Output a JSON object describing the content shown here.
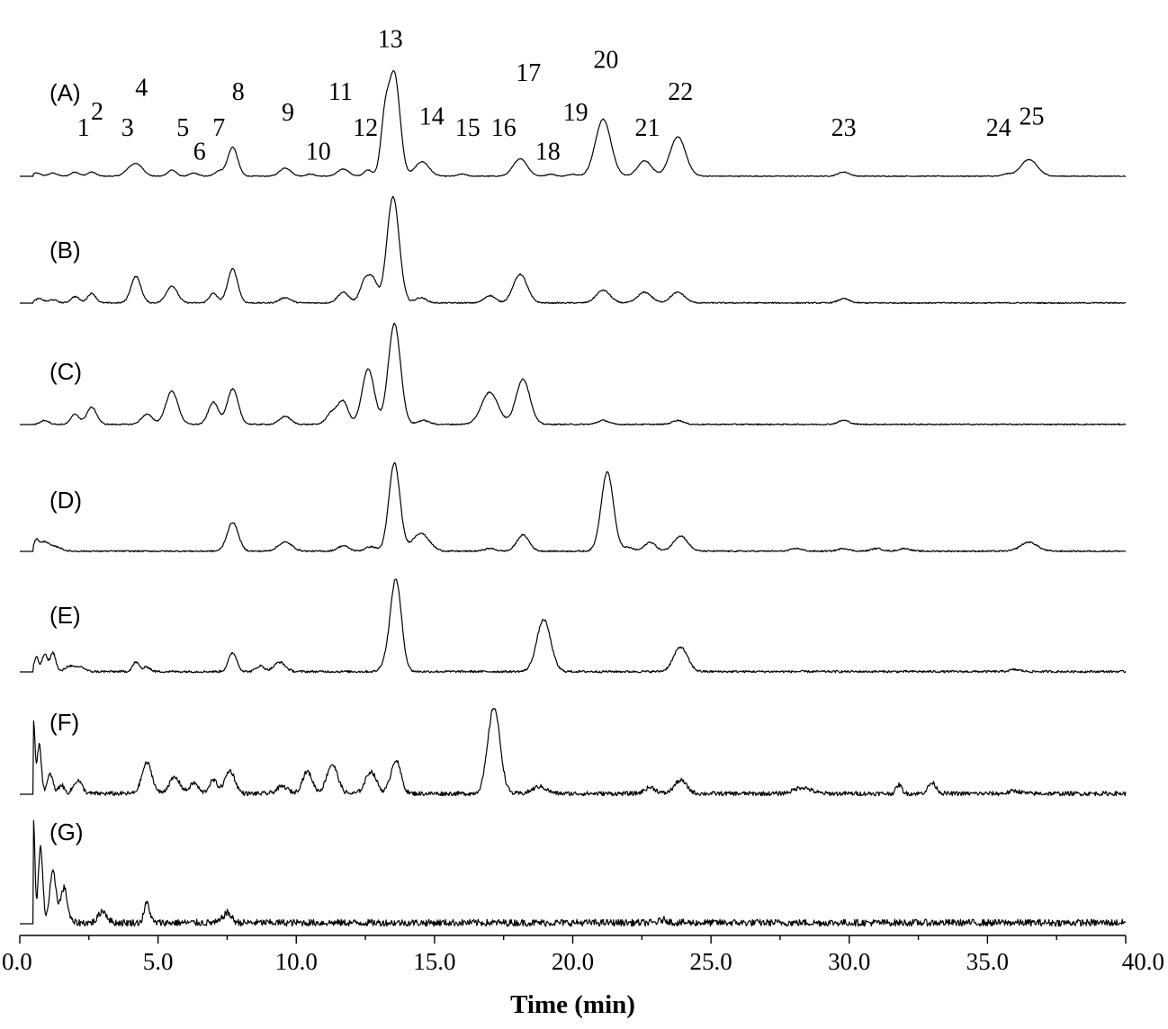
{
  "chart_data": {
    "type": "line",
    "xlabel": "Time (min)",
    "ylabel": "",
    "xlim": [
      0,
      40
    ],
    "x_ticks": [
      "0.0",
      "5.0",
      "10.0",
      "15.0",
      "20.0",
      "25.0",
      "30.0",
      "35.0",
      "40.0"
    ],
    "grid": false,
    "series": [
      {
        "name": "(A)",
        "baseline_noise": 0.004,
        "peaks": [
          [
            0.6,
            0.03,
            0.15
          ],
          [
            1.2,
            0.03,
            0.15
          ],
          [
            2.0,
            0.04,
            0.15
          ],
          [
            2.6,
            0.04,
            0.15
          ],
          [
            4.0,
            0.07,
            0.2
          ],
          [
            4.3,
            0.09,
            0.2
          ],
          [
            5.5,
            0.06,
            0.15
          ],
          [
            6.3,
            0.03,
            0.15
          ],
          [
            7.2,
            0.05,
            0.15
          ],
          [
            7.7,
            0.28,
            0.18
          ],
          [
            9.6,
            0.08,
            0.2
          ],
          [
            10.5,
            0.02,
            0.15
          ],
          [
            11.7,
            0.07,
            0.2
          ],
          [
            12.6,
            0.06,
            0.15
          ],
          [
            13.2,
            0.5,
            0.15
          ],
          [
            13.55,
            0.98,
            0.2
          ],
          [
            14.55,
            0.14,
            0.25
          ],
          [
            16.0,
            0.02,
            0.15
          ],
          [
            18.1,
            0.17,
            0.25
          ],
          [
            19.2,
            0.02,
            0.15
          ],
          [
            20.0,
            0.02,
            0.15
          ],
          [
            21.1,
            0.55,
            0.28
          ],
          [
            22.6,
            0.15,
            0.25
          ],
          [
            23.8,
            0.38,
            0.28
          ],
          [
            29.8,
            0.04,
            0.2
          ],
          [
            35.7,
            0.02,
            0.15
          ],
          [
            36.5,
            0.16,
            0.3
          ]
        ],
        "peak_labels": [
          {
            "text": "1",
            "x": 2.3,
            "y": 0.39
          },
          {
            "text": "2",
            "x": 2.8,
            "y": 0.55
          },
          {
            "text": "3",
            "x": 3.9,
            "y": 0.39
          },
          {
            "text": "4",
            "x": 4.4,
            "y": 0.78
          },
          {
            "text": "5",
            "x": 5.9,
            "y": 0.39
          },
          {
            "text": "6",
            "x": 6.5,
            "y": 0.16
          },
          {
            "text": "7",
            "x": 7.2,
            "y": 0.39
          },
          {
            "text": "8",
            "x": 7.9,
            "y": 0.74
          },
          {
            "text": "9",
            "x": 9.7,
            "y": 0.54
          },
          {
            "text": "10",
            "x": 10.8,
            "y": 0.16
          },
          {
            "text": "11",
            "x": 11.6,
            "y": 0.74
          },
          {
            "text": "12",
            "x": 12.5,
            "y": 0.39
          },
          {
            "text": "13",
            "x": 13.4,
            "y": 1.25
          },
          {
            "text": "14",
            "x": 14.9,
            "y": 0.5
          },
          {
            "text": "15",
            "x": 16.2,
            "y": 0.39
          },
          {
            "text": "16",
            "x": 17.5,
            "y": 0.39
          },
          {
            "text": "17",
            "x": 18.4,
            "y": 0.92
          },
          {
            "text": "18",
            "x": 19.1,
            "y": 0.16
          },
          {
            "text": "19",
            "x": 20.1,
            "y": 0.54
          },
          {
            "text": "20",
            "x": 21.2,
            "y": 1.05
          },
          {
            "text": "21",
            "x": 22.7,
            "y": 0.39
          },
          {
            "text": "22",
            "x": 23.9,
            "y": 0.74
          },
          {
            "text": "23",
            "x": 29.8,
            "y": 0.39
          },
          {
            "text": "24",
            "x": 35.4,
            "y": 0.39
          },
          {
            "text": "25",
            "x": 36.6,
            "y": 0.5
          }
        ]
      },
      {
        "name": "(B)",
        "baseline_noise": 0.006,
        "peaks": [
          [
            0.7,
            0.04,
            0.15
          ],
          [
            1.2,
            0.03,
            0.15
          ],
          [
            2.0,
            0.06,
            0.15
          ],
          [
            2.6,
            0.09,
            0.15
          ],
          [
            4.2,
            0.25,
            0.18
          ],
          [
            5.5,
            0.16,
            0.2
          ],
          [
            7.0,
            0.09,
            0.15
          ],
          [
            7.7,
            0.32,
            0.18
          ],
          [
            9.6,
            0.05,
            0.2
          ],
          [
            11.7,
            0.1,
            0.2
          ],
          [
            12.5,
            0.22,
            0.18
          ],
          [
            12.8,
            0.18,
            0.15
          ],
          [
            13.5,
            1.0,
            0.22
          ],
          [
            14.5,
            0.05,
            0.2
          ],
          [
            17.0,
            0.07,
            0.2
          ],
          [
            18.1,
            0.27,
            0.25
          ],
          [
            21.1,
            0.12,
            0.25
          ],
          [
            22.6,
            0.1,
            0.25
          ],
          [
            23.8,
            0.1,
            0.25
          ],
          [
            29.8,
            0.04,
            0.2
          ]
        ],
        "peak_labels": []
      },
      {
        "name": "(C)",
        "baseline_noise": 0.006,
        "peaks": [
          [
            0.9,
            0.04,
            0.15
          ],
          [
            2.0,
            0.1,
            0.15
          ],
          [
            2.6,
            0.17,
            0.18
          ],
          [
            4.6,
            0.1,
            0.2
          ],
          [
            5.5,
            0.33,
            0.22
          ],
          [
            7.0,
            0.22,
            0.18
          ],
          [
            7.7,
            0.35,
            0.2
          ],
          [
            9.6,
            0.08,
            0.2
          ],
          [
            11.3,
            0.12,
            0.2
          ],
          [
            11.7,
            0.22,
            0.18
          ],
          [
            12.6,
            0.55,
            0.22
          ],
          [
            13.55,
            1.0,
            0.22
          ],
          [
            14.6,
            0.04,
            0.2
          ],
          [
            17.0,
            0.32,
            0.3
          ],
          [
            18.2,
            0.45,
            0.25
          ],
          [
            21.1,
            0.04,
            0.2
          ],
          [
            23.8,
            0.04,
            0.2
          ],
          [
            29.8,
            0.04,
            0.2
          ]
        ],
        "peak_labels": []
      },
      {
        "name": "(D)",
        "baseline_noise": 0.008,
        "peaks": [
          [
            0.6,
            0.12,
            0.1
          ],
          [
            0.9,
            0.1,
            0.15
          ],
          [
            1.3,
            0.05,
            0.2
          ],
          [
            7.7,
            0.32,
            0.2
          ],
          [
            9.6,
            0.1,
            0.25
          ],
          [
            11.7,
            0.06,
            0.2
          ],
          [
            12.7,
            0.05,
            0.2
          ],
          [
            13.55,
            0.98,
            0.2
          ],
          [
            14.5,
            0.2,
            0.3
          ],
          [
            17.0,
            0.03,
            0.2
          ],
          [
            18.2,
            0.18,
            0.22
          ],
          [
            21.25,
            0.88,
            0.22
          ],
          [
            22.0,
            0.04,
            0.2
          ],
          [
            22.8,
            0.1,
            0.2
          ],
          [
            23.9,
            0.17,
            0.25
          ],
          [
            28.1,
            0.03,
            0.2
          ],
          [
            29.8,
            0.03,
            0.2
          ],
          [
            31.0,
            0.03,
            0.2
          ],
          [
            32.0,
            0.03,
            0.2
          ],
          [
            36.5,
            0.1,
            0.3
          ]
        ],
        "peak_labels": []
      },
      {
        "name": "(E)",
        "baseline_noise": 0.012,
        "peaks": [
          [
            0.6,
            0.15,
            0.08
          ],
          [
            0.9,
            0.18,
            0.1
          ],
          [
            1.2,
            0.2,
            0.1
          ],
          [
            1.8,
            0.06,
            0.15
          ],
          [
            2.2,
            0.05,
            0.15
          ],
          [
            4.2,
            0.1,
            0.12
          ],
          [
            4.6,
            0.05,
            0.12
          ],
          [
            7.7,
            0.2,
            0.15
          ],
          [
            8.7,
            0.06,
            0.15
          ],
          [
            9.4,
            0.1,
            0.2
          ],
          [
            13.2,
            0.06,
            0.15
          ],
          [
            13.6,
            0.98,
            0.2
          ],
          [
            18.95,
            0.55,
            0.25
          ],
          [
            23.9,
            0.26,
            0.25
          ],
          [
            36.0,
            0.02,
            0.2
          ]
        ],
        "peak_labels": []
      },
      {
        "name": "(F)",
        "baseline_noise": 0.025,
        "peaks": [
          [
            0.5,
            0.8,
            0.05
          ],
          [
            0.7,
            0.55,
            0.08
          ],
          [
            1.1,
            0.22,
            0.1
          ],
          [
            1.5,
            0.1,
            0.1
          ],
          [
            2.1,
            0.15,
            0.15
          ],
          [
            4.6,
            0.35,
            0.18
          ],
          [
            5.6,
            0.18,
            0.2
          ],
          [
            6.3,
            0.12,
            0.15
          ],
          [
            7.0,
            0.15,
            0.15
          ],
          [
            7.6,
            0.26,
            0.18
          ],
          [
            9.5,
            0.08,
            0.2
          ],
          [
            10.4,
            0.25,
            0.18
          ],
          [
            11.3,
            0.33,
            0.2
          ],
          [
            12.7,
            0.25,
            0.2
          ],
          [
            13.6,
            0.38,
            0.18
          ],
          [
            17.15,
            0.98,
            0.22
          ],
          [
            18.8,
            0.08,
            0.25
          ],
          [
            22.8,
            0.07,
            0.2
          ],
          [
            23.9,
            0.15,
            0.22
          ],
          [
            28.3,
            0.07,
            0.3
          ],
          [
            31.8,
            0.1,
            0.1
          ],
          [
            33.0,
            0.12,
            0.15
          ],
          [
            36.0,
            0.03,
            0.2
          ]
        ],
        "peak_labels": []
      },
      {
        "name": "(G)",
        "baseline_noise": 0.035,
        "peaks": [
          [
            0.5,
            1.0,
            0.05
          ],
          [
            0.75,
            0.75,
            0.08
          ],
          [
            1.2,
            0.5,
            0.12
          ],
          [
            1.6,
            0.35,
            0.12
          ],
          [
            3.0,
            0.12,
            0.15
          ],
          [
            4.6,
            0.2,
            0.1
          ],
          [
            7.5,
            0.1,
            0.15
          ],
          [
            23.3,
            0.03,
            0.15
          ]
        ],
        "peak_labels": []
      }
    ]
  }
}
